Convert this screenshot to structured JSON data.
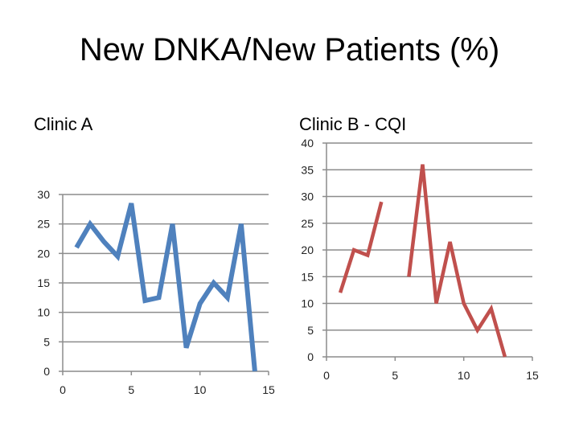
{
  "page": {
    "title": "New DNKA/New Patients  (%)"
  },
  "chart_data": [
    {
      "type": "line",
      "title": "Clinic A",
      "xlabel": "",
      "ylabel": "",
      "xlim": [
        0,
        15
      ],
      "ylim": [
        0,
        30
      ],
      "x_ticks": [
        "0",
        "5",
        "10",
        "15"
      ],
      "y_ticks": [
        "0",
        "5",
        "10",
        "15",
        "20",
        "25",
        "30"
      ],
      "grid": "horizontal",
      "color": "#4f81bd",
      "series": [
        {
          "segments": [
            [
              [
                1,
                21
              ],
              [
                2,
                25
              ],
              [
                3,
                22
              ],
              [
                4,
                19.5
              ],
              [
                5,
                28.5
              ],
              [
                6,
                12
              ],
              [
                7,
                12.5
              ],
              [
                8,
                25
              ],
              [
                9,
                4
              ],
              [
                10,
                11.5
              ],
              [
                11,
                15
              ],
              [
                12,
                12.5
              ],
              [
                13,
                25
              ],
              [
                14,
                0
              ]
            ]
          ]
        }
      ]
    },
    {
      "type": "line",
      "title": "Clinic B - CQI",
      "xlabel": "",
      "ylabel": "",
      "xlim": [
        0,
        15
      ],
      "ylim": [
        0,
        40
      ],
      "x_ticks": [
        "0",
        "5",
        "10",
        "15"
      ],
      "y_ticks": [
        "0",
        "5",
        "10",
        "15",
        "20",
        "25",
        "30",
        "35",
        "40"
      ],
      "grid": "horizontal",
      "color": "#c0504d",
      "series": [
        {
          "segments": [
            [
              [
                1,
                12
              ],
              [
                2,
                20
              ],
              [
                3,
                19
              ],
              [
                4,
                29
              ]
            ],
            [
              [
                6,
                15
              ],
              [
                7,
                36
              ],
              [
                8,
                10
              ],
              [
                9,
                21.5
              ],
              [
                10,
                10
              ],
              [
                11,
                5
              ],
              [
                12,
                9
              ],
              [
                13,
                0
              ]
            ]
          ]
        }
      ]
    }
  ]
}
